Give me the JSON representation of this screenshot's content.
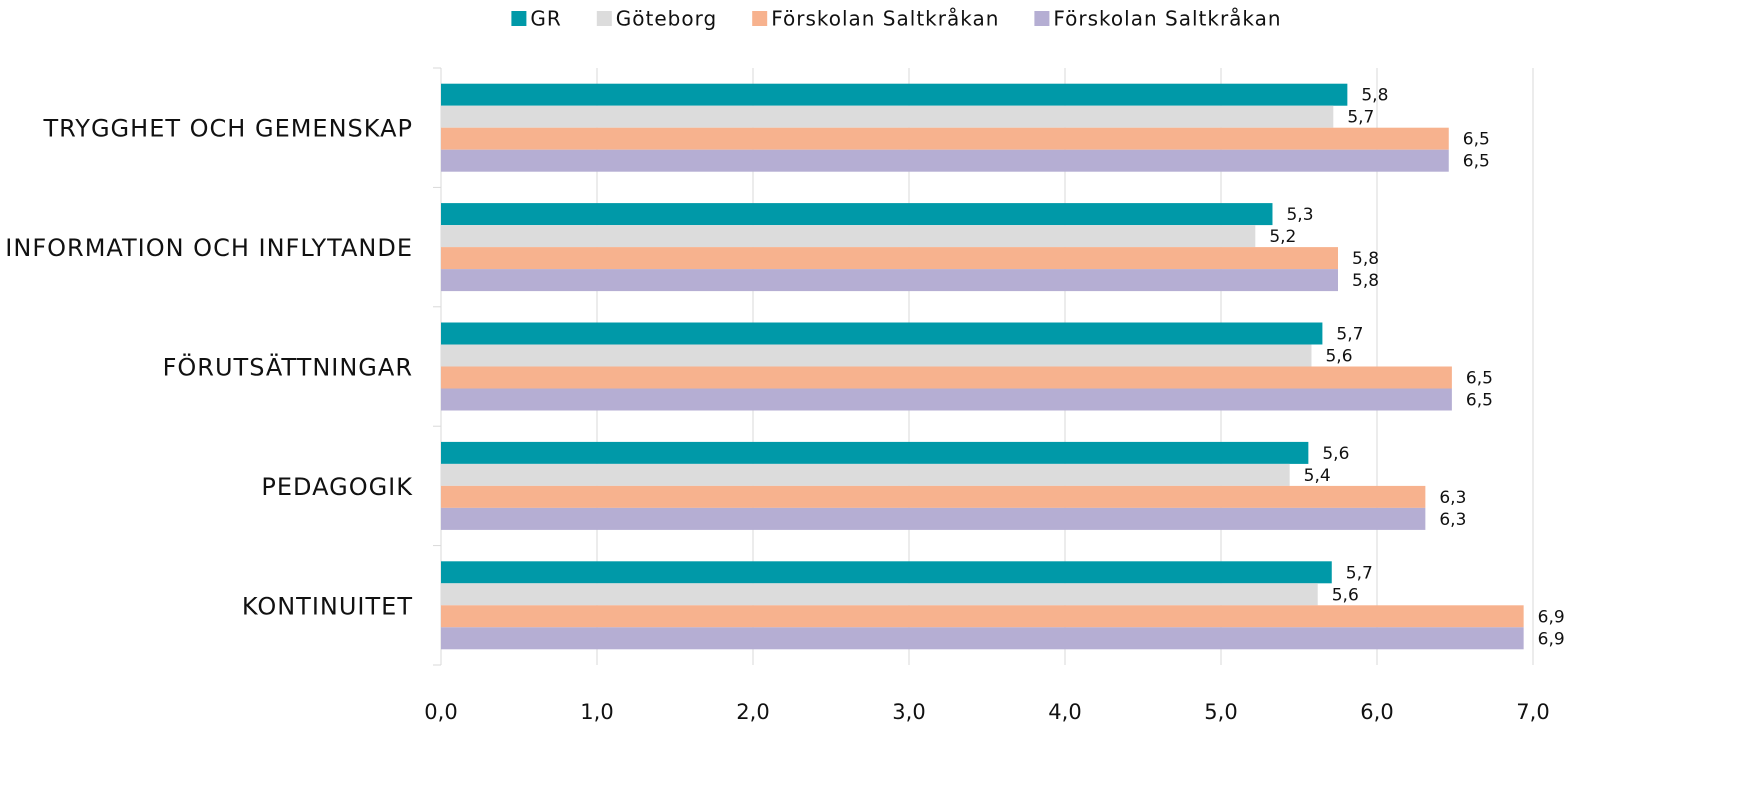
{
  "chart_data": {
    "type": "barh",
    "categories": [
      "TRYGGHET OCH GEMENSKAP",
      "INFORMATION OCH INFLYTANDE",
      "FÖRUTSÄTTNINGAR",
      "PEDAGOGIK",
      "KONTINUITET"
    ],
    "series": [
      {
        "name": "GR",
        "color": "#0099a8",
        "values": [
          5.81,
          5.33,
          5.65,
          5.56,
          5.71
        ],
        "value_labels": [
          "5,8",
          "5,3",
          "5,7",
          "5,6",
          "5,7"
        ]
      },
      {
        "name": "Göteborg",
        "color": "#dcdcdc",
        "values": [
          5.72,
          5.22,
          5.58,
          5.44,
          5.62
        ],
        "value_labels": [
          "5,7",
          "5,2",
          "5,6",
          "5,4",
          "5,6"
        ]
      },
      {
        "name": "Förskolan Saltkråkan",
        "color": "#f7b28e",
        "values": [
          6.46,
          5.75,
          6.48,
          6.31,
          6.94
        ],
        "value_labels": [
          "6,5",
          "5,8",
          "6,5",
          "6,3",
          "6,9"
        ]
      },
      {
        "name": "Förskolan Saltkråkan",
        "color": "#b5aed3",
        "values": [
          6.46,
          5.75,
          6.48,
          6.31,
          6.94
        ],
        "value_labels": [
          "6,5",
          "5,8",
          "6,5",
          "6,3",
          "6,9"
        ]
      }
    ],
    "xlim": [
      0,
      7
    ],
    "xticks": [
      {
        "value": 0,
        "label": "0,0"
      },
      {
        "value": 1,
        "label": "1,0"
      },
      {
        "value": 2,
        "label": "2,0"
      },
      {
        "value": 3,
        "label": "3,0"
      },
      {
        "value": 4,
        "label": "4,0"
      },
      {
        "value": 5,
        "label": "5,0"
      },
      {
        "value": 6,
        "label": "6,0"
      },
      {
        "value": 7,
        "label": "7,0"
      }
    ],
    "grid": true,
    "legend": "top"
  }
}
